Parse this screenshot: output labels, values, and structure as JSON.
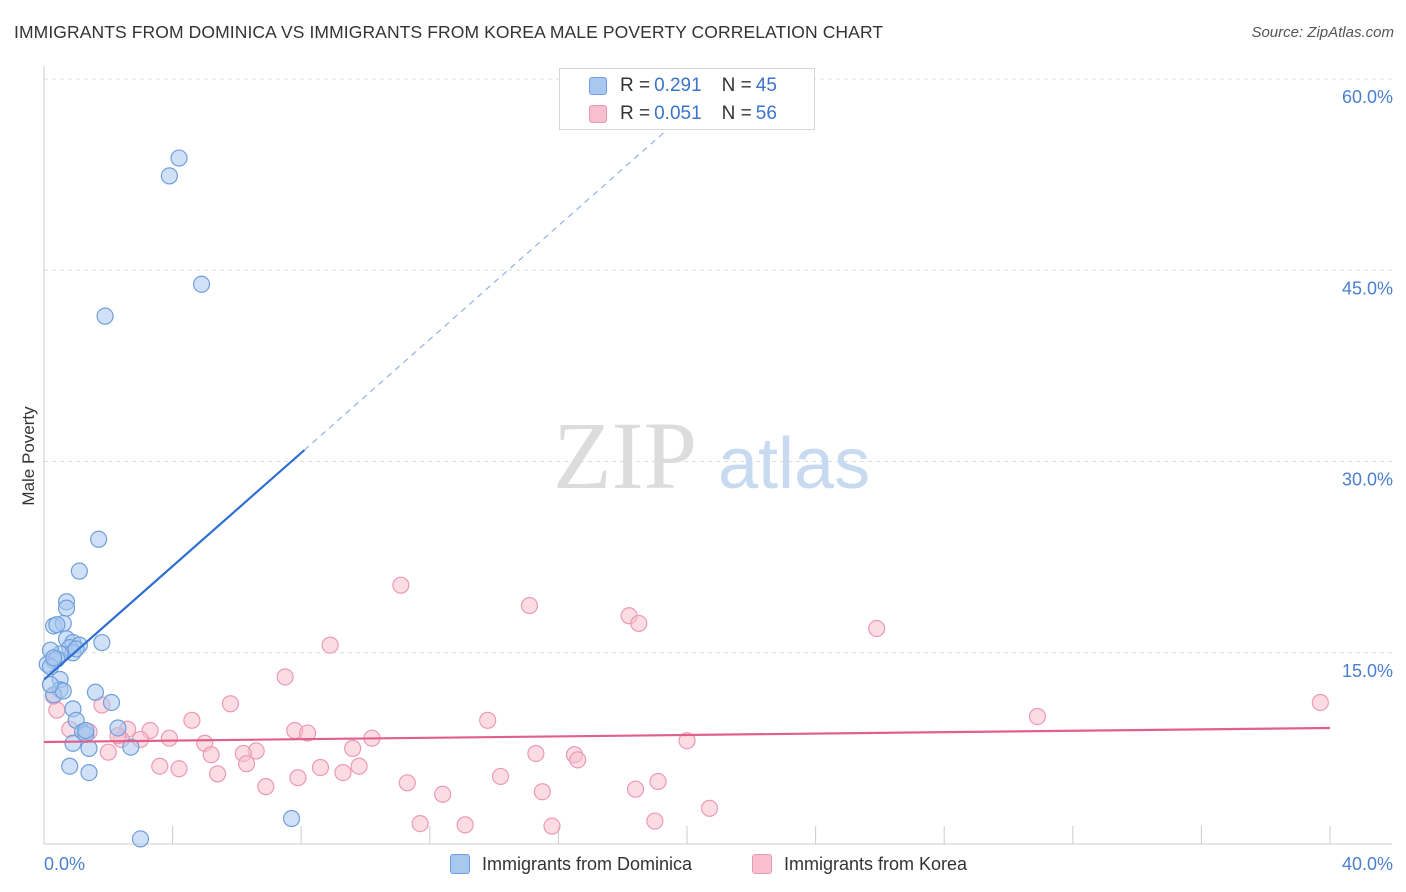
{
  "title": "IMMIGRANTS FROM DOMINICA VS IMMIGRANTS FROM KOREA MALE POVERTY CORRELATION CHART",
  "source": "Source: ZipAtlas.com",
  "watermark": {
    "zip": "ZIP",
    "atlas": "atlas"
  },
  "colors": {
    "dominica_fill": "#a9c8f0",
    "dominica_stroke": "#6f9fdc",
    "dominica_line": "#2f6fd0",
    "korea_fill": "#f7bfd0",
    "korea_stroke": "#ec9ab3",
    "korea_line": "#e0608a",
    "tick_text": "#4a7fcf",
    "grid": "#dddddd"
  },
  "legend": {
    "items": [
      {
        "r_label": "R = ",
        "r_value": "0.291",
        "n_label": "N = ",
        "n_value": "45"
      },
      {
        "r_label": "R = ",
        "r_value": "0.051",
        "n_label": "N = ",
        "n_value": "56"
      }
    ]
  },
  "chart_data": {
    "type": "scatter",
    "title": "IMMIGRANTS FROM DOMINICA VS IMMIGRANTS FROM KOREA MALE POVERTY CORRELATION CHART",
    "xlabel": "",
    "ylabel": "Male Poverty",
    "xlim": [
      0,
      40
    ],
    "ylim": [
      0,
      60
    ],
    "x_tick_labels": [
      "0.0%",
      "40.0%"
    ],
    "y_ticks": [
      15,
      30,
      45,
      60
    ],
    "y_tick_labels": [
      "15.0%",
      "30.0%",
      "45.0%",
      "60.0%"
    ],
    "grid": true,
    "legend_position": "bottom",
    "series": [
      {
        "name": "Immigrants from Dominica",
        "r": 0.291,
        "n": 45,
        "trend": {
          "x0": 0.0,
          "y0": 12.9,
          "x1": 8.1,
          "y1": 30.9,
          "dash_x1": 20.0,
          "dash_y1": 57.4
        },
        "points": [
          [
            4.2,
            53.8
          ],
          [
            3.9,
            52.4
          ],
          [
            4.9,
            43.9
          ],
          [
            1.9,
            41.4
          ],
          [
            1.7,
            23.9
          ],
          [
            1.1,
            21.4
          ],
          [
            0.7,
            19.0
          ],
          [
            0.7,
            18.5
          ],
          [
            0.3,
            17.1
          ],
          [
            0.6,
            17.3
          ],
          [
            0.4,
            17.2
          ],
          [
            0.7,
            16.1
          ],
          [
            0.9,
            15.8
          ],
          [
            1.8,
            15.8
          ],
          [
            1.1,
            15.6
          ],
          [
            0.8,
            15.4
          ],
          [
            0.9,
            15.0
          ],
          [
            0.5,
            14.9
          ],
          [
            0.2,
            15.2
          ],
          [
            0.3,
            14.4
          ],
          [
            0.1,
            14.1
          ],
          [
            0.4,
            14.5
          ],
          [
            0.2,
            13.9
          ],
          [
            0.3,
            14.6
          ],
          [
            0.5,
            12.9
          ],
          [
            0.5,
            12.1
          ],
          [
            0.3,
            11.7
          ],
          [
            1.6,
            11.9
          ],
          [
            2.1,
            11.1
          ],
          [
            0.9,
            10.6
          ],
          [
            1.0,
            9.7
          ],
          [
            2.3,
            9.1
          ],
          [
            1.2,
            8.8
          ],
          [
            1.3,
            8.6
          ],
          [
            1.3,
            8.9
          ],
          [
            0.9,
            7.9
          ],
          [
            1.4,
            7.5
          ],
          [
            2.7,
            7.6
          ],
          [
            0.8,
            6.1
          ],
          [
            1.4,
            5.6
          ],
          [
            7.7,
            2.0
          ],
          [
            3.0,
            0.4
          ],
          [
            0.6,
            12.0
          ],
          [
            0.2,
            12.5
          ],
          [
            1.0,
            15.3
          ]
        ]
      },
      {
        "name": "Immigrants from Korea",
        "r": 0.051,
        "n": 56,
        "trend": {
          "x0": 0.0,
          "y0": 8.0,
          "x1": 40.0,
          "y1": 9.1
        },
        "points": [
          [
            11.1,
            20.3
          ],
          [
            15.1,
            18.7
          ],
          [
            18.2,
            17.9
          ],
          [
            18.5,
            17.3
          ],
          [
            25.9,
            16.9
          ],
          [
            8.9,
            15.6
          ],
          [
            7.5,
            13.1
          ],
          [
            5.8,
            11.0
          ],
          [
            1.8,
            10.9
          ],
          [
            0.4,
            10.5
          ],
          [
            0.3,
            11.6
          ],
          [
            30.9,
            10.0
          ],
          [
            39.7,
            11.1
          ],
          [
            4.6,
            9.7
          ],
          [
            13.8,
            9.7
          ],
          [
            0.8,
            9.0
          ],
          [
            2.6,
            9.0
          ],
          [
            3.3,
            8.9
          ],
          [
            7.8,
            8.9
          ],
          [
            8.2,
            8.7
          ],
          [
            10.2,
            8.3
          ],
          [
            3.9,
            8.3
          ],
          [
            3.0,
            8.2
          ],
          [
            2.4,
            8.2
          ],
          [
            5.0,
            7.9
          ],
          [
            20.0,
            8.1
          ],
          [
            9.6,
            7.5
          ],
          [
            6.6,
            7.3
          ],
          [
            6.2,
            7.1
          ],
          [
            5.2,
            7.0
          ],
          [
            2.0,
            7.2
          ],
          [
            15.3,
            7.1
          ],
          [
            16.5,
            7.0
          ],
          [
            16.6,
            6.6
          ],
          [
            3.6,
            6.1
          ],
          [
            4.2,
            5.9
          ],
          [
            8.6,
            6.0
          ],
          [
            9.8,
            6.1
          ],
          [
            9.3,
            5.6
          ],
          [
            5.4,
            5.5
          ],
          [
            6.3,
            6.3
          ],
          [
            7.9,
            5.2
          ],
          [
            14.2,
            5.3
          ],
          [
            19.1,
            4.9
          ],
          [
            11.3,
            4.8
          ],
          [
            6.9,
            4.5
          ],
          [
            18.4,
            4.3
          ],
          [
            15.5,
            4.1
          ],
          [
            12.4,
            3.9
          ],
          [
            20.7,
            2.8
          ],
          [
            11.7,
            1.6
          ],
          [
            13.1,
            1.5
          ],
          [
            15.8,
            1.4
          ],
          [
            19.0,
            1.8
          ],
          [
            2.3,
            8.5
          ],
          [
            1.4,
            8.8
          ]
        ]
      }
    ]
  },
  "bottom_legend": {
    "dominica_label": "Immigrants from Dominica",
    "korea_label": "Immigrants from Korea"
  }
}
